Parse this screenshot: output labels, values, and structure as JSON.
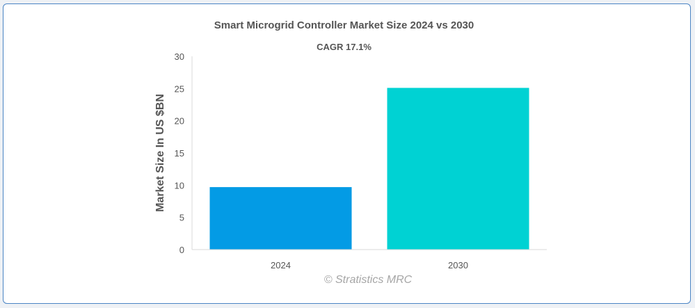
{
  "chart_data": {
    "type": "bar",
    "title": "Smart Microgrid Controller Market Size 2024 vs 2030",
    "subtitle": "CAGR 17.1%",
    "ylabel": "Market Size In US $BN",
    "xlabel": "",
    "categories": [
      "2024",
      "2030"
    ],
    "values": [
      9.7,
      25.1
    ],
    "colors": [
      "#039be5",
      "#00d2d3"
    ],
    "ylim": [
      0,
      30
    ],
    "yticks": [
      "0",
      "5",
      "10",
      "15",
      "20",
      "25",
      "30"
    ],
    "grid": false,
    "legend": "none"
  },
  "watermark": "© Stratistics MRC"
}
